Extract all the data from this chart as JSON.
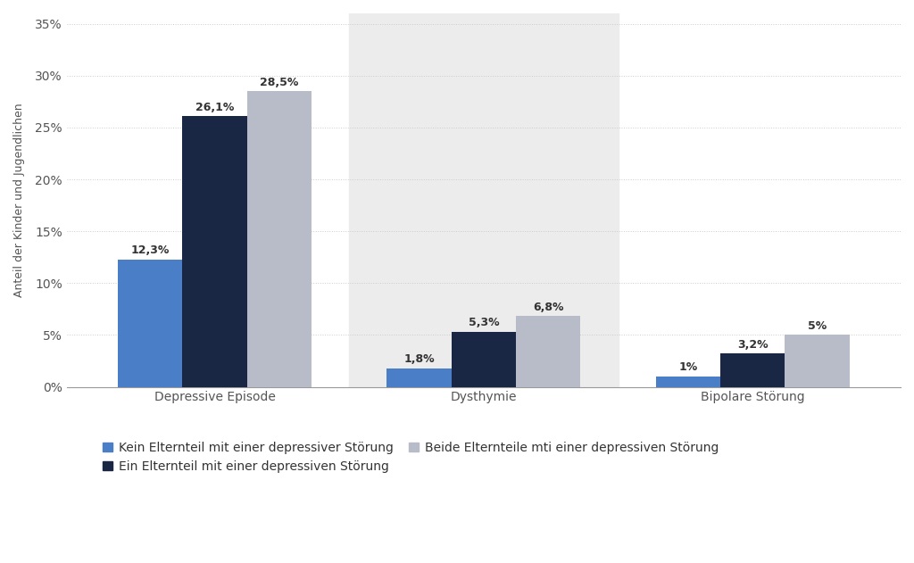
{
  "categories": [
    "Depressive Episode",
    "Dysthymie",
    "Bipolare Störung"
  ],
  "series": [
    {
      "label": "Kein Elternteil mit einer depressiver Störung",
      "values": [
        12.3,
        1.8,
        1.0
      ],
      "color": "#4A7EC7"
    },
    {
      "label": "Ein Elternteil mit einer depressiven Störung",
      "values": [
        26.1,
        5.3,
        3.2
      ],
      "color": "#1A2744"
    },
    {
      "label": "Beide Elternteile mti einer depressiven Störung",
      "values": [
        28.5,
        6.8,
        5.0
      ],
      "color": "#B8BCC8"
    }
  ],
  "bar_labels": [
    [
      "12,3%",
      "1,8%",
      "1%"
    ],
    [
      "26,1%",
      "5,3%",
      "3,2%"
    ],
    [
      "28,5%",
      "6,8%",
      "5%"
    ]
  ],
  "ylabel": "Anteil der Kinder und Jugendlichen",
  "ylim": [
    0,
    36
  ],
  "yticks": [
    0,
    5,
    10,
    15,
    20,
    25,
    30,
    35
  ],
  "ytick_labels": [
    "0%",
    "5%",
    "10%",
    "15%",
    "20%",
    "25%",
    "30%",
    "35%"
  ],
  "background_color": "#FFFFFF",
  "band_color": "#ECECEC",
  "bar_label_fontsize": 9,
  "axis_label_fontsize": 9,
  "tick_label_fontsize": 10,
  "legend_fontsize": 10,
  "bar_width": 0.24
}
